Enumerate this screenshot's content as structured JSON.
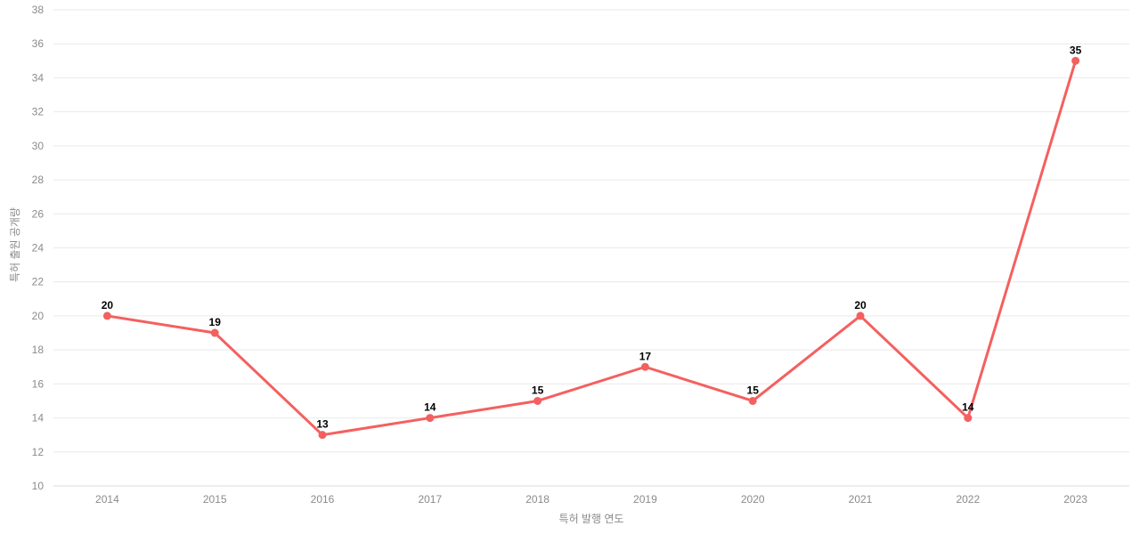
{
  "chart_style": {
    "background": "#ffffff",
    "line_color": "#f4605f",
    "marker_color": "#f4605f",
    "grid_color": "#e9e9e9",
    "axis_line_color": "#d7dce2",
    "tick_label_color": "#8b8b8b",
    "point_label_color": "#000000",
    "marker_radius": 4.5,
    "line_width": 3
  },
  "chart_data": {
    "type": "line",
    "title": "",
    "xlabel": "특허 발행 연도",
    "ylabel": "특허 출원 공개량",
    "categories": [
      "2014",
      "2015",
      "2016",
      "2017",
      "2018",
      "2019",
      "2020",
      "2021",
      "2022",
      "2023"
    ],
    "values": [
      20,
      19,
      13,
      14,
      15,
      17,
      15,
      20,
      14,
      35
    ],
    "ylim": [
      10,
      38
    ],
    "ytick_step": 2,
    "grid": "horizontal",
    "legend": "none",
    "marker": "circle",
    "point_labels": true
  }
}
